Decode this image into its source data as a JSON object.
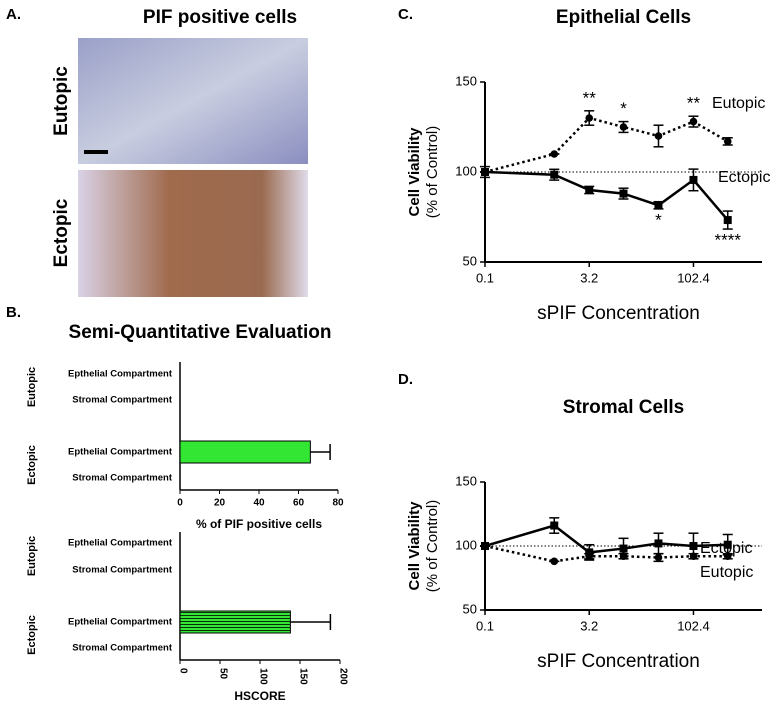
{
  "panel_labels": [
    "A.",
    "B.",
    "C.",
    "D."
  ],
  "panel_a": {
    "title": "PIF positive cells",
    "images": [
      {
        "label": "Eutopic"
      },
      {
        "label": "Ectopic"
      }
    ]
  },
  "section_b_title": "Semi-Quantitative Evaluation",
  "chart_data": [
    {
      "type": "hbar",
      "color": "#33e633",
      "groups": [
        {
          "name": "Eutopic",
          "categories": [
            "Epthelial Compartment",
            "Stromal Compartment"
          ],
          "values": [
            0,
            0
          ],
          "errors": [
            null,
            null
          ]
        },
        {
          "name": "Ectopic",
          "categories": [
            "Epthelial Compartment",
            "Stromal Compartment"
          ],
          "values": [
            66,
            0
          ],
          "errors": [
            10,
            null
          ]
        }
      ],
      "xlim": [
        0,
        80
      ],
      "xticks": [
        0,
        20,
        40,
        60,
        80
      ],
      "xlabel": "% of PIF positive cells"
    },
    {
      "type": "hbar",
      "color": "#33e633",
      "hatch": "horizontal",
      "groups": [
        {
          "name": "Eutopic",
          "categories": [
            "Epthelial Compartment",
            "Stromal Compartment"
          ],
          "values": [
            0,
            0
          ],
          "errors": [
            null,
            null
          ]
        },
        {
          "name": "Ectopic",
          "categories": [
            "Epthelial Compartment",
            "Stromal Compartment"
          ],
          "values": [
            138,
            0
          ],
          "errors": [
            50,
            null
          ]
        }
      ],
      "xlim": [
        0,
        200
      ],
      "xticks": [
        0,
        50,
        100,
        150,
        200
      ],
      "xlabel": "HSCORE"
    },
    {
      "type": "line",
      "title": "Epithelial Cells",
      "ylabel": [
        "Cell Viability",
        "(% of Control)"
      ],
      "xlabel": "sPIF Concentration",
      "xscale": "log",
      "x": [
        0.1,
        1,
        3.2,
        10,
        32,
        102.4,
        320
      ],
      "xlim": [
        0.1,
        1000
      ],
      "xticks": [
        0.1,
        3.2,
        102.4
      ],
      "ylim": [
        50,
        150
      ],
      "yticks": [
        50,
        100,
        150
      ],
      "reference_line": 100,
      "series": [
        {
          "name": "Eutopic",
          "color": "#000000",
          "dash": "dotted",
          "marker": "circle",
          "values": [
            100,
            110,
            130,
            125,
            120,
            128,
            117
          ],
          "errors": [
            0,
            0,
            4,
            3,
            6,
            3,
            2
          ]
        },
        {
          "name": "Ectopic",
          "color": "#000000",
          "dash": "solid",
          "marker": "square",
          "values": [
            100,
            98.5,
            90,
            88,
            81.5,
            95.6,
            73.3
          ],
          "errors": [
            3,
            3,
            2,
            3,
            2,
            6,
            5
          ]
        }
      ],
      "annotations": [
        "**",
        "*",
        "**",
        "*",
        "****"
      ]
    },
    {
      "type": "line",
      "title": "Stromal Cells",
      "ylabel": [
        "Cell Viability",
        "(% of Control)"
      ],
      "xlabel": "sPIF Concentration",
      "xscale": "log",
      "x": [
        0.1,
        1,
        3.2,
        10,
        32,
        102.4,
        320
      ],
      "xlim": [
        0.1,
        1000
      ],
      "xticks": [
        0.1,
        3.2,
        102.4
      ],
      "ylim": [
        50,
        150
      ],
      "yticks": [
        50,
        100,
        150
      ],
      "reference_line": 100,
      "series": [
        {
          "name": "Ectopic",
          "color": "#000000",
          "dash": "solid",
          "marker": "square",
          "values": [
            100,
            116,
            95,
            98,
            102,
            100,
            101
          ],
          "errors": [
            0,
            6,
            6,
            8,
            8,
            10,
            8
          ]
        },
        {
          "name": "Eutopic",
          "color": "#000000",
          "dash": "dotted",
          "marker": "circle",
          "values": [
            100,
            88,
            92,
            92,
            91,
            92,
            92
          ],
          "errors": [
            0,
            0,
            2,
            2,
            3,
            2,
            2
          ]
        }
      ],
      "annotations": []
    }
  ]
}
